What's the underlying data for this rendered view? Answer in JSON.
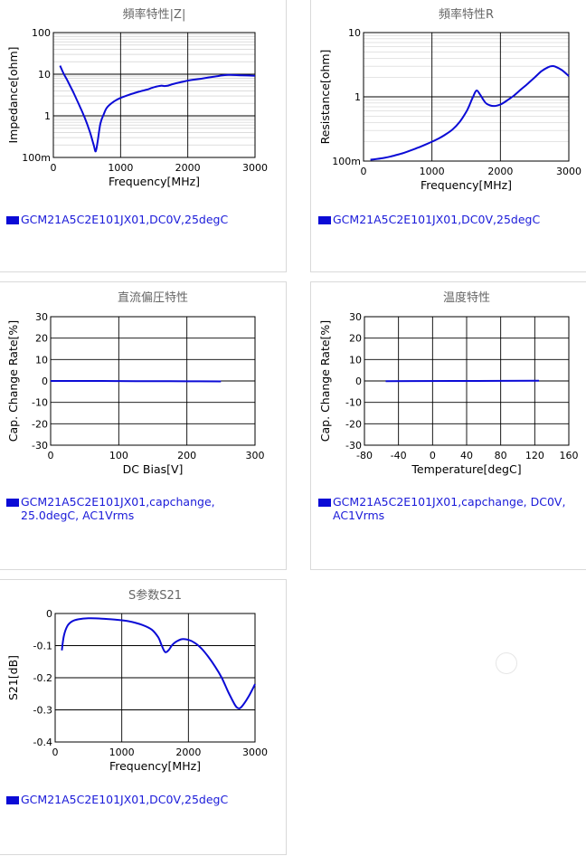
{
  "colors": {
    "series": "#0b0bd6",
    "legend_text": "#1a1ad9",
    "title": "#666666",
    "grid_major": "#000000",
    "grid_minor": "#c8c8c8"
  },
  "chart_data": [
    {
      "id": "impedance",
      "type": "line",
      "title": "頻率特性|Z|",
      "xlabel": "Frequency[MHz]",
      "ylabel": "Impedance[ohm]",
      "xlim": [
        0,
        3000
      ],
      "ylim": [
        0.1,
        100
      ],
      "ylog": true,
      "xticks": [
        0,
        1000,
        2000,
        3000
      ],
      "xtick_labels": [
        "0",
        "1000",
        "2000",
        "3000"
      ],
      "yticks": [
        0.1,
        1,
        10,
        100
      ],
      "ytick_labels": [
        "100m",
        "1",
        "10",
        "100"
      ],
      "grid": true,
      "legend": "GCM21A5C2E101JX01,DC0V,25degC",
      "series": [
        {
          "x": [
            100,
            150,
            200,
            250,
            300,
            350,
            400,
            450,
            500,
            550,
            600,
            630,
            660,
            700,
            750,
            800,
            900,
            1000,
            1100,
            1200,
            1300,
            1400,
            1500,
            1600,
            1650,
            1700,
            1750,
            1800,
            2000,
            2200,
            2400,
            2600,
            2800,
            3000
          ],
          "y": [
            16,
            10.5,
            7.5,
            5.2,
            3.6,
            2.4,
            1.6,
            1.05,
            0.65,
            0.38,
            0.2,
            0.14,
            0.25,
            0.65,
            1.1,
            1.6,
            2.2,
            2.7,
            3.1,
            3.5,
            3.9,
            4.3,
            4.9,
            5.3,
            5.2,
            5.3,
            5.6,
            5.9,
            7,
            7.8,
            8.8,
            9.6,
            9.4,
            9.2
          ]
        }
      ]
    },
    {
      "id": "resistance",
      "type": "line",
      "title": "頻率特性R",
      "xlabel": "Frequency[MHz]",
      "ylabel": "Resistance[ohm]",
      "xlim": [
        0,
        3000
      ],
      "ylim": [
        0.1,
        10
      ],
      "ylog": true,
      "xticks": [
        0,
        1000,
        2000,
        3000
      ],
      "xtick_labels": [
        "0",
        "1000",
        "2000",
        "3000"
      ],
      "yticks": [
        0.1,
        1,
        10
      ],
      "ytick_labels": [
        "100m",
        "1",
        "10"
      ],
      "grid": true,
      "legend": "GCM21A5C2E101JX01,DC0V,25degC",
      "series": [
        {
          "x": [
            100,
            200,
            300,
            400,
            500,
            600,
            700,
            800,
            900,
            1000,
            1100,
            1200,
            1300,
            1400,
            1500,
            1550,
            1600,
            1650,
            1700,
            1750,
            1800,
            1900,
            2000,
            2100,
            2200,
            2300,
            2400,
            2500,
            2600,
            2700,
            2750,
            2800,
            2900,
            3000
          ],
          "y": [
            0.105,
            0.108,
            0.112,
            0.118,
            0.126,
            0.135,
            0.148,
            0.162,
            0.18,
            0.2,
            0.225,
            0.26,
            0.31,
            0.4,
            0.58,
            0.75,
            1.0,
            1.25,
            1.1,
            0.9,
            0.78,
            0.72,
            0.76,
            0.88,
            1.05,
            1.3,
            1.6,
            2.0,
            2.5,
            2.9,
            3.0,
            2.95,
            2.6,
            2.1
          ]
        }
      ]
    },
    {
      "id": "dcbias",
      "type": "line",
      "title": "直流偏圧特性",
      "xlabel": "DC Bias[V]",
      "ylabel": "Cap. Change Rate[%]",
      "xlim": [
        0,
        300
      ],
      "ylim": [
        -30,
        30
      ],
      "ylog": false,
      "xticks": [
        0,
        100,
        200,
        300
      ],
      "xtick_labels": [
        "0",
        "100",
        "200",
        "300"
      ],
      "yticks": [
        -30,
        -20,
        -10,
        0,
        10,
        20,
        30
      ],
      "ytick_labels": [
        "-30",
        "-20",
        "-10",
        "0",
        "10",
        "20",
        "30"
      ],
      "grid": true,
      "legend": "GCM21A5C2E101JX01,capchange, 25.0degC, AC1Vrms",
      "series": [
        {
          "x": [
            0,
            50,
            100,
            150,
            200,
            250
          ],
          "y": [
            0,
            0,
            -0.05,
            -0.1,
            -0.15,
            -0.2
          ]
        }
      ]
    },
    {
      "id": "temperature",
      "type": "line",
      "title": "温度特性",
      "xlabel": "Temperature[degC]",
      "ylabel": "Cap. Change Rate[%]",
      "xlim": [
        -80,
        160
      ],
      "ylim": [
        -30,
        30
      ],
      "ylog": false,
      "xticks": [
        -80,
        -40,
        0,
        40,
        80,
        120,
        160
      ],
      "xtick_labels": [
        "-80",
        "-40",
        "0",
        "40",
        "80",
        "120",
        "160"
      ],
      "yticks": [
        -30,
        -20,
        -10,
        0,
        10,
        20,
        30
      ],
      "ytick_labels": [
        "-30",
        "-20",
        "-10",
        "0",
        "10",
        "20",
        "30"
      ],
      "grid": true,
      "legend": "GCM21A5C2E101JX01,capchange, DC0V, AC1Vrms",
      "series": [
        {
          "x": [
            -55,
            -25,
            25,
            85,
            125
          ],
          "y": [
            -0.1,
            -0.05,
            0,
            0.05,
            0.1
          ]
        }
      ]
    },
    {
      "id": "s21",
      "type": "line",
      "title": "S参数S21",
      "xlabel": "Frequency[MHz]",
      "ylabel": "S21[dB]",
      "xlim": [
        0,
        3000
      ],
      "ylim": [
        -0.4,
        0
      ],
      "ylog": false,
      "xticks": [
        0,
        1000,
        2000,
        3000
      ],
      "xtick_labels": [
        "0",
        "1000",
        "2000",
        "3000"
      ],
      "yticks": [
        -0.4,
        -0.3,
        -0.2,
        -0.1,
        0
      ],
      "ytick_labels": [
        "-0.4",
        "-0.3",
        "-0.2",
        "-0.1",
        "0"
      ],
      "grid": true,
      "legend": "GCM21A5C2E101JX01,DC0V,25degC",
      "series": [
        {
          "x": [
            100,
            130,
            180,
            250,
            350,
            500,
            700,
            900,
            1100,
            1300,
            1450,
            1550,
            1600,
            1650,
            1700,
            1750,
            1800,
            1900,
            2000,
            2100,
            2200,
            2300,
            2400,
            2500,
            2600,
            2700,
            2750,
            2800,
            2900,
            3000
          ],
          "y": [
            -0.115,
            -0.07,
            -0.04,
            -0.025,
            -0.018,
            -0.015,
            -0.016,
            -0.019,
            -0.024,
            -0.035,
            -0.05,
            -0.075,
            -0.1,
            -0.12,
            -0.115,
            -0.1,
            -0.09,
            -0.08,
            -0.082,
            -0.092,
            -0.11,
            -0.135,
            -0.165,
            -0.2,
            -0.245,
            -0.285,
            -0.295,
            -0.29,
            -0.26,
            -0.22
          ]
        }
      ]
    }
  ]
}
